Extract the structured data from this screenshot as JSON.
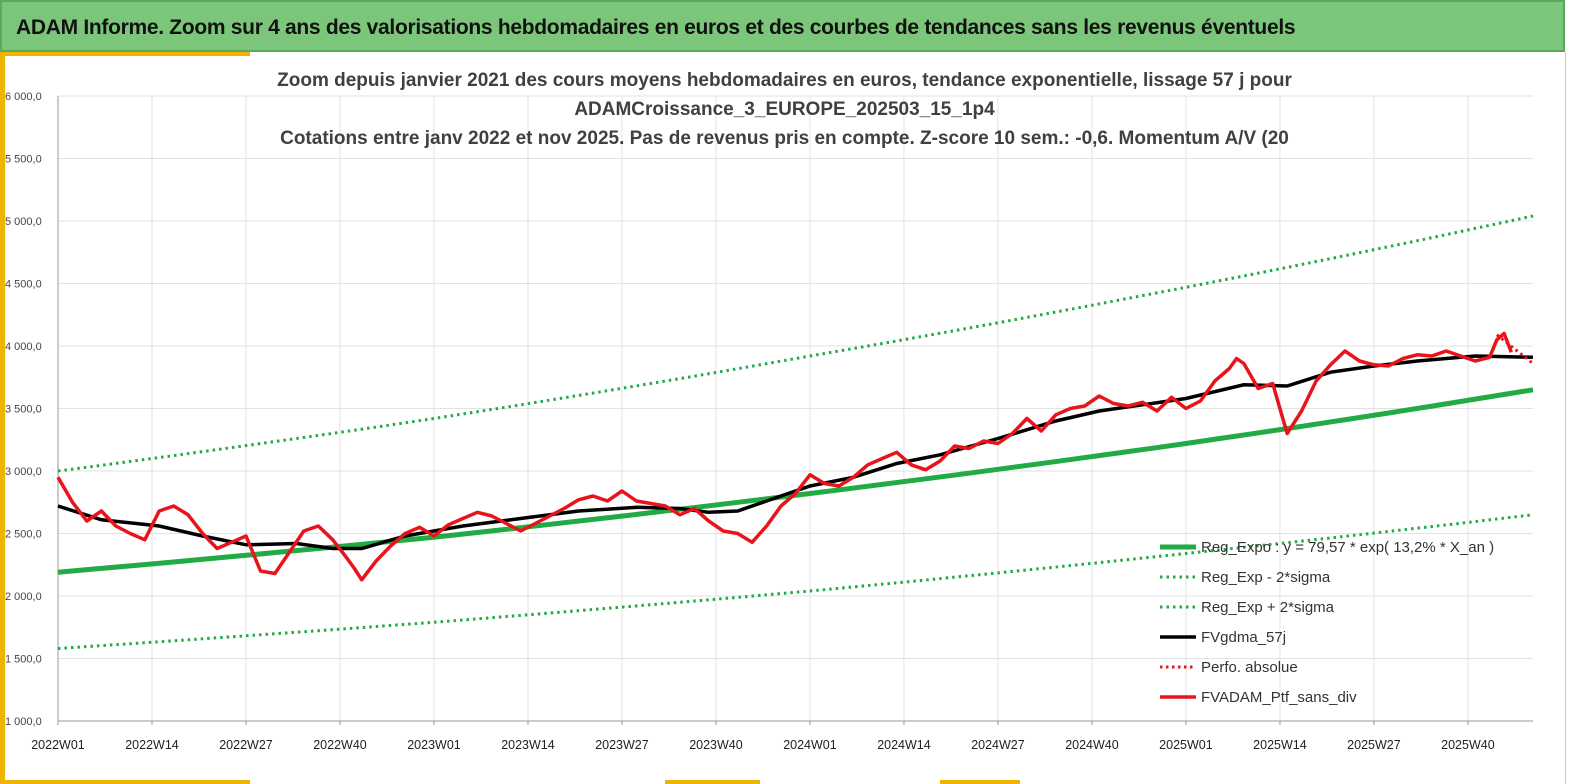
{
  "header": {
    "title": "ADAM Informe. Zoom sur 4 ans des valorisations hebdomadaires en euros et des courbes de tendances sans les revenus éventuels"
  },
  "colors": {
    "green": "#22aa44",
    "black": "#000000",
    "red": "#e8141b",
    "header_bg": "#7bc67b",
    "accent": "#f0b400"
  },
  "chart_data": {
    "type": "line",
    "title_lines": [
      "Zoom depuis janvier 2021 des cours moyens hebdomadaires  en euros, tendance exponentielle, lissage 57 j pour",
      "ADAMCroissance_3_EUROPE_202503_15_1p4",
      "Cotations  entre janv 2022 et nov 2025. Pas de revenus pris en compte. Z-score 10 sem.: -0,6. Momentum A/V (20"
    ],
    "ylim": [
      1000,
      6000
    ],
    "y_ticks": [
      "1 000,0",
      "1 500,0",
      "2 000,0",
      "2 500,0",
      "3 000,0",
      "3 500,0",
      "4 000,0",
      "4 500,0",
      "5 000,0",
      "5 500,0",
      "6 000,0"
    ],
    "x_range_weeks": [
      0,
      204
    ],
    "x_ticks": [
      {
        "label": "2022W01",
        "week": 0
      },
      {
        "label": "2022W14",
        "week": 13
      },
      {
        "label": "2022W27",
        "week": 26
      },
      {
        "label": "2022W40",
        "week": 39
      },
      {
        "label": "2023W01",
        "week": 52
      },
      {
        "label": "2023W14",
        "week": 65
      },
      {
        "label": "2023W27",
        "week": 78
      },
      {
        "label": "2023W40",
        "week": 91
      },
      {
        "label": "2024W01",
        "week": 104
      },
      {
        "label": "2024W14",
        "week": 117
      },
      {
        "label": "2024W27",
        "week": 130
      },
      {
        "label": "2024W40",
        "week": 143
      },
      {
        "label": "2025W01",
        "week": 156
      },
      {
        "label": "2025W14",
        "week": 169
      },
      {
        "label": "2025W27",
        "week": 182
      },
      {
        "label": "2025W40",
        "week": 195
      }
    ],
    "series": [
      {
        "name": "Reg_Expo : y = 79,57 * exp( 13,2% *  X_an )",
        "style": "solid-green",
        "points": [
          [
            0,
            2190
          ],
          [
            52,
            2470
          ],
          [
            104,
            2820
          ],
          [
            156,
            3220
          ],
          [
            204,
            3650
          ]
        ]
      },
      {
        "name": "Reg_Exp - 2*sigma",
        "style": "dotted-green",
        "points": [
          [
            0,
            1580
          ],
          [
            52,
            1790
          ],
          [
            104,
            2040
          ],
          [
            156,
            2340
          ],
          [
            204,
            2650
          ]
        ]
      },
      {
        "name": "Reg_Exp + 2*sigma",
        "style": "dotted-green",
        "points": [
          [
            0,
            3000
          ],
          [
            52,
            3420
          ],
          [
            104,
            3920
          ],
          [
            156,
            4470
          ],
          [
            204,
            5040
          ]
        ]
      },
      {
        "name": "FVgdma_57j",
        "style": "solid-black",
        "points": [
          [
            0,
            2720
          ],
          [
            6,
            2610
          ],
          [
            14,
            2560
          ],
          [
            20,
            2480
          ],
          [
            26,
            2410
          ],
          [
            33,
            2420
          ],
          [
            38,
            2380
          ],
          [
            42,
            2380
          ],
          [
            48,
            2480
          ],
          [
            56,
            2560
          ],
          [
            64,
            2620
          ],
          [
            72,
            2680
          ],
          [
            80,
            2710
          ],
          [
            86,
            2700
          ],
          [
            90,
            2670
          ],
          [
            94,
            2680
          ],
          [
            98,
            2760
          ],
          [
            104,
            2880
          ],
          [
            110,
            2950
          ],
          [
            116,
            3060
          ],
          [
            122,
            3130
          ],
          [
            130,
            3260
          ],
          [
            138,
            3400
          ],
          [
            144,
            3480
          ],
          [
            150,
            3530
          ],
          [
            156,
            3580
          ],
          [
            164,
            3690
          ],
          [
            170,
            3680
          ],
          [
            176,
            3790
          ],
          [
            182,
            3840
          ],
          [
            188,
            3880
          ],
          [
            196,
            3920
          ],
          [
            204,
            3910
          ]
        ]
      },
      {
        "name": "Perfo. absolue",
        "style": "dotted-red",
        "points": [
          [
            199,
            4090
          ],
          [
            204,
            3860
          ]
        ]
      },
      {
        "name": "FVADAM_Ptf_sans_div",
        "style": "solid-red",
        "points": [
          [
            0,
            2950
          ],
          [
            2,
            2750
          ],
          [
            4,
            2600
          ],
          [
            6,
            2680
          ],
          [
            8,
            2560
          ],
          [
            10,
            2500
          ],
          [
            12,
            2450
          ],
          [
            14,
            2680
          ],
          [
            16,
            2720
          ],
          [
            18,
            2650
          ],
          [
            20,
            2500
          ],
          [
            22,
            2380
          ],
          [
            24,
            2430
          ],
          [
            26,
            2480
          ],
          [
            28,
            2200
          ],
          [
            30,
            2180
          ],
          [
            32,
            2350
          ],
          [
            34,
            2520
          ],
          [
            36,
            2560
          ],
          [
            38,
            2450
          ],
          [
            40,
            2300
          ],
          [
            41,
            2220
          ],
          [
            42,
            2130
          ],
          [
            44,
            2280
          ],
          [
            46,
            2400
          ],
          [
            48,
            2500
          ],
          [
            50,
            2550
          ],
          [
            52,
            2480
          ],
          [
            54,
            2570
          ],
          [
            56,
            2620
          ],
          [
            58,
            2670
          ],
          [
            60,
            2640
          ],
          [
            62,
            2580
          ],
          [
            64,
            2520
          ],
          [
            66,
            2580
          ],
          [
            68,
            2640
          ],
          [
            70,
            2700
          ],
          [
            72,
            2770
          ],
          [
            74,
            2800
          ],
          [
            76,
            2760
          ],
          [
            78,
            2840
          ],
          [
            80,
            2760
          ],
          [
            82,
            2740
          ],
          [
            84,
            2720
          ],
          [
            86,
            2650
          ],
          [
            88,
            2700
          ],
          [
            90,
            2600
          ],
          [
            92,
            2520
          ],
          [
            94,
            2500
          ],
          [
            96,
            2430
          ],
          [
            98,
            2560
          ],
          [
            100,
            2720
          ],
          [
            102,
            2820
          ],
          [
            104,
            2970
          ],
          [
            106,
            2900
          ],
          [
            108,
            2880
          ],
          [
            110,
            2950
          ],
          [
            112,
            3050
          ],
          [
            114,
            3100
          ],
          [
            116,
            3150
          ],
          [
            118,
            3050
          ],
          [
            120,
            3010
          ],
          [
            122,
            3080
          ],
          [
            124,
            3200
          ],
          [
            126,
            3180
          ],
          [
            128,
            3240
          ],
          [
            130,
            3220
          ],
          [
            132,
            3300
          ],
          [
            134,
            3420
          ],
          [
            136,
            3320
          ],
          [
            138,
            3450
          ],
          [
            140,
            3500
          ],
          [
            142,
            3520
          ],
          [
            144,
            3600
          ],
          [
            146,
            3540
          ],
          [
            148,
            3520
          ],
          [
            150,
            3550
          ],
          [
            152,
            3480
          ],
          [
            154,
            3590
          ],
          [
            156,
            3500
          ],
          [
            158,
            3560
          ],
          [
            160,
            3720
          ],
          [
            162,
            3820
          ],
          [
            163,
            3900
          ],
          [
            164,
            3860
          ],
          [
            166,
            3660
          ],
          [
            168,
            3700
          ],
          [
            169,
            3500
          ],
          [
            170,
            3300
          ],
          [
            172,
            3480
          ],
          [
            174,
            3720
          ],
          [
            176,
            3850
          ],
          [
            178,
            3960
          ],
          [
            180,
            3880
          ],
          [
            182,
            3850
          ],
          [
            184,
            3840
          ],
          [
            186,
            3900
          ],
          [
            188,
            3930
          ],
          [
            190,
            3920
          ],
          [
            192,
            3960
          ],
          [
            194,
            3920
          ],
          [
            196,
            3880
          ],
          [
            198,
            3910
          ],
          [
            199,
            4050
          ],
          [
            200,
            4100
          ],
          [
            201,
            3950
          ]
        ]
      }
    ],
    "legend_placement": "lower-right"
  }
}
